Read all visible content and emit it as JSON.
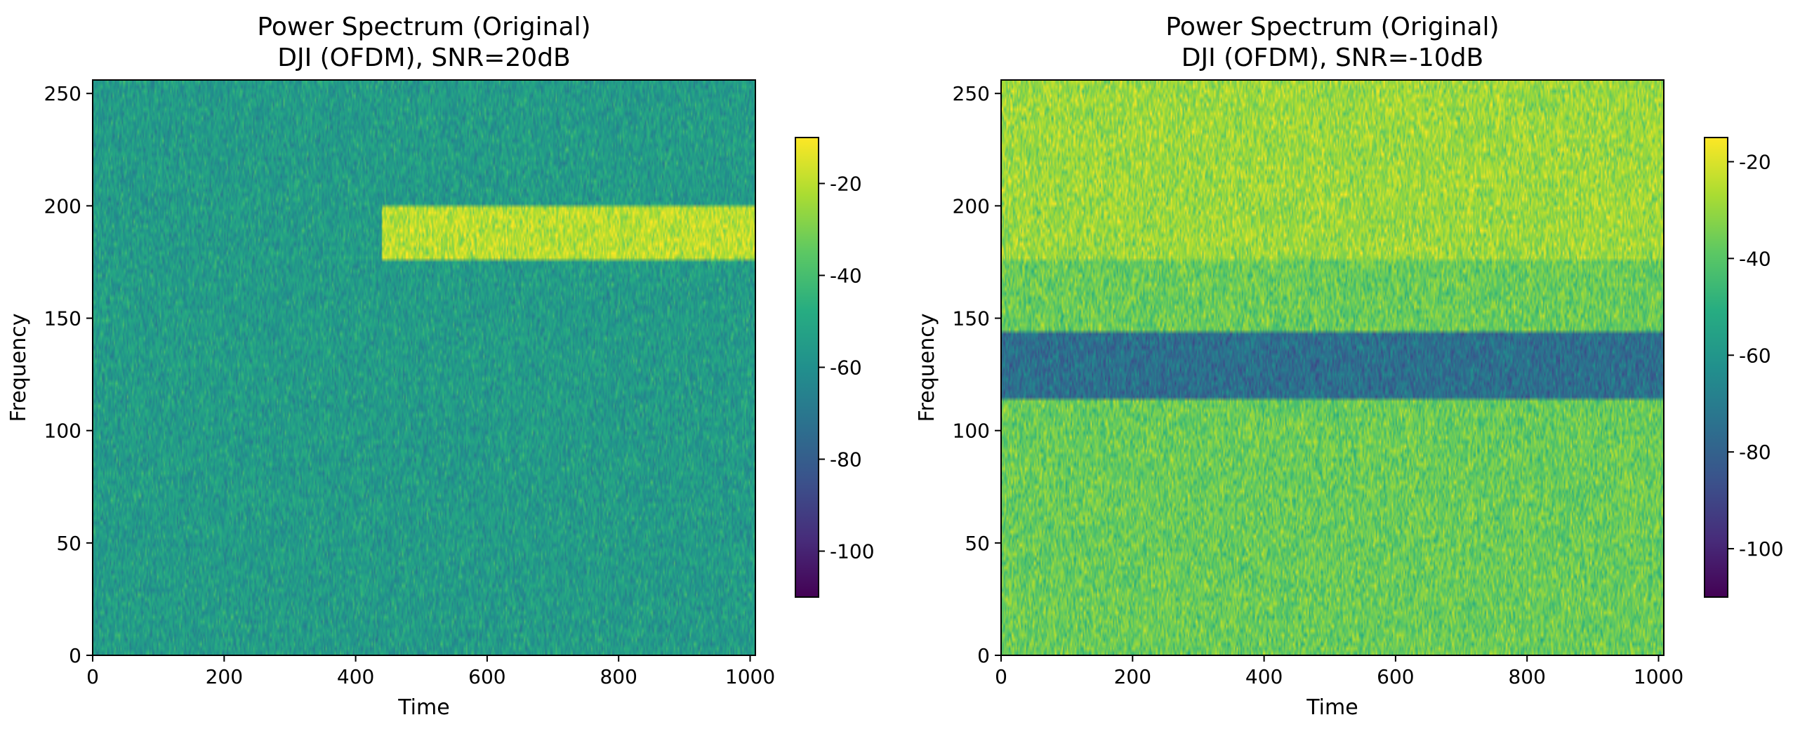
{
  "chart_data": [
    {
      "type": "heatmap",
      "title": "Power Spectrum (Original)",
      "subtitle": "DJI (OFDM), SNR=20dB",
      "xlabel": "Time",
      "ylabel": "Frequency",
      "xlim": [
        0,
        1008
      ],
      "ylim": [
        0,
        256
      ],
      "xticks": [
        "0",
        "200",
        "400",
        "600",
        "800",
        "1000"
      ],
      "yticks": [
        "0",
        "50",
        "100",
        "150",
        "200",
        "250"
      ],
      "colormap": "viridis",
      "colorbar": {
        "range": [
          -110,
          -10
        ],
        "ticks": [
          "-20",
          "-40",
          "-60",
          "-80",
          "-100"
        ]
      },
      "background_level": -55,
      "regions": [
        {
          "name": "signal",
          "time": [
            440,
            1008
          ],
          "frequency": [
            176,
            200
          ],
          "level": -20
        }
      ],
      "noise_amplitude": 6,
      "seed": 7
    },
    {
      "type": "heatmap",
      "title": "Power Spectrum (Original)",
      "subtitle": "DJI (OFDM), SNR=-10dB",
      "xlabel": "Time",
      "ylabel": "Frequency",
      "xlim": [
        0,
        1008
      ],
      "ylim": [
        0,
        256
      ],
      "xticks": [
        "0",
        "200",
        "400",
        "600",
        "800",
        "1000"
      ],
      "yticks": [
        "0",
        "50",
        "100",
        "150",
        "200",
        "250"
      ],
      "colormap": "viridis",
      "colorbar": {
        "range": [
          -110,
          -15
        ],
        "ticks": [
          "-20",
          "-40",
          "-60",
          "-80",
          "-100"
        ]
      },
      "background_level": -37,
      "regions": [
        {
          "name": "upper-band",
          "time": [
            0,
            1008
          ],
          "frequency": [
            176,
            256
          ],
          "level": -29
        },
        {
          "name": "notch",
          "time": [
            0,
            1008
          ],
          "frequency": [
            114,
            144
          ],
          "level": -75
        }
      ],
      "noise_amplitude": 6,
      "seed": 21
    }
  ]
}
